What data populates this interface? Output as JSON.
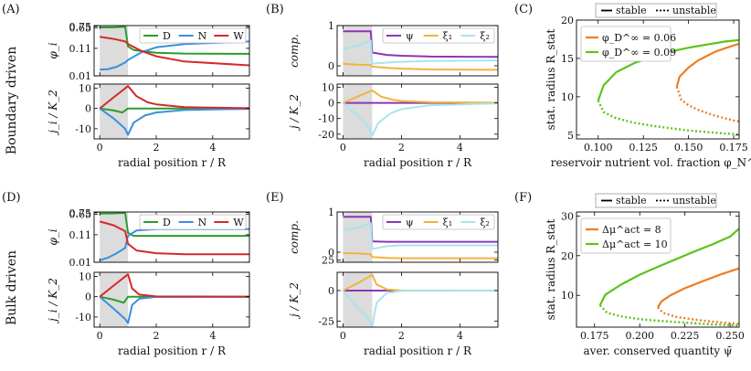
{
  "row_labels": [
    "Boundary driven",
    "Bulk driven"
  ],
  "panel_letters": [
    "(A)",
    "(B)",
    "(C)",
    "(D)",
    "(E)",
    "(F)"
  ],
  "colors": {
    "D": "#2a9d2a",
    "N": "#3b8fe0",
    "W": "#d42a2a",
    "psi": "#8e34b8",
    "xi1": "#f3b33c",
    "xi2": "#a8e4ee",
    "orange": "#ee7d22",
    "green": "#5cc31c",
    "shade": "#dcdcdc"
  },
  "chart_data": [
    {
      "id": "A_top",
      "type": "line",
      "title": "",
      "ylabel": "φ_i",
      "xlim": [
        -0.2,
        5.3
      ],
      "scale": "log",
      "ylim": [
        0.01,
        0.8
      ],
      "yticks": [
        0.01,
        0.11,
        0.65,
        0.75
      ],
      "ytick_labels": [
        "0.01",
        "0.11",
        "0.65",
        "0.75"
      ],
      "legend": [
        "D",
        "N",
        "W"
      ],
      "shaded_x": [
        0,
        1
      ],
      "series": [
        {
          "name": "D",
          "x": [
            0,
            0.5,
            0.9,
            1.0,
            1.2,
            2,
            3,
            5.3
          ],
          "values": [
            0.68,
            0.69,
            0.72,
            0.13,
            0.095,
            0.075,
            0.07,
            0.068
          ]
        },
        {
          "name": "N",
          "x": [
            0,
            0.3,
            0.6,
            0.9,
            1.0,
            1.5,
            2,
            3,
            5.3
          ],
          "values": [
            0.017,
            0.018,
            0.022,
            0.032,
            0.04,
            0.08,
            0.12,
            0.16,
            0.2
          ]
        },
        {
          "name": "W",
          "x": [
            0,
            0.5,
            0.9,
            1.0,
            1.5,
            2,
            3,
            5.3
          ],
          "values": [
            0.3,
            0.25,
            0.2,
            0.16,
            0.085,
            0.055,
            0.035,
            0.025
          ]
        }
      ]
    },
    {
      "id": "A_bottom",
      "type": "line",
      "ylabel": "j_i / K_2",
      "xlabel": "radial position r / R",
      "xlim": [
        -0.2,
        5.3
      ],
      "ylim": [
        -15,
        12
      ],
      "yticks": [
        -10,
        0,
        10
      ],
      "xticks": [
        0,
        2,
        4
      ],
      "shaded_x": [
        0,
        1
      ],
      "series": [
        {
          "name": "D",
          "x": [
            0,
            0.5,
            0.8,
            1.0,
            1.5,
            2,
            3,
            5.3
          ],
          "values": [
            0,
            -1,
            -2,
            0,
            0,
            0,
            0,
            0
          ]
        },
        {
          "name": "N",
          "x": [
            0,
            0.5,
            0.9,
            1.0,
            1.2,
            1.6,
            2,
            3,
            5.3
          ],
          "values": [
            0,
            -5,
            -10,
            -13,
            -7,
            -3.5,
            -2,
            -0.8,
            -0.2
          ]
        },
        {
          "name": "W",
          "x": [
            0,
            0.5,
            1.0,
            1.3,
            1.7,
            2,
            3,
            5.3
          ],
          "values": [
            0,
            5.5,
            11,
            6,
            3,
            2,
            0.6,
            0.1
          ]
        }
      ]
    },
    {
      "id": "B_top",
      "type": "line",
      "ylabel": "comp.",
      "xlim": [
        -0.2,
        5.3
      ],
      "ylim": [
        -0.25,
        1.0
      ],
      "yticks": [
        0,
        1
      ],
      "legend": [
        "ψ",
        "ξ₁",
        "ξ₂"
      ],
      "shaded_x": [
        0,
        1
      ],
      "series": [
        {
          "name": "ψ",
          "x": [
            0,
            0.5,
            0.95,
            1.0,
            1.5,
            2,
            3,
            5.3
          ],
          "values": [
            0.86,
            0.86,
            0.86,
            0.33,
            0.27,
            0.25,
            0.23,
            0.22
          ]
        },
        {
          "name": "ξ₁",
          "x": [
            0,
            0.5,
            0.95,
            1.0,
            1.5,
            2,
            3,
            5.3
          ],
          "values": [
            0.05,
            0.03,
            0.02,
            -0.02,
            -0.05,
            -0.07,
            -0.09,
            -0.1
          ]
        },
        {
          "name": "ξ₂",
          "x": [
            0,
            0.5,
            0.95,
            1.0,
            1.5,
            2,
            3,
            5.3
          ],
          "values": [
            0.42,
            0.5,
            0.62,
            0.05,
            0.08,
            0.1,
            0.12,
            0.13
          ]
        }
      ]
    },
    {
      "id": "B_bottom",
      "type": "line",
      "ylabel": "j / K_2",
      "xlabel": "radial position r / R",
      "xlim": [
        -0.2,
        5.3
      ],
      "ylim": [
        -23,
        12
      ],
      "yticks": [
        -20,
        -10,
        0,
        10
      ],
      "xticks": [
        0,
        2,
        4
      ],
      "shaded_x": [
        0,
        1
      ],
      "series": [
        {
          "name": "ψ",
          "x": [
            0,
            5.3
          ],
          "values": [
            0,
            0
          ]
        },
        {
          "name": "ξ₁",
          "x": [
            0,
            0.5,
            1.0,
            1.3,
            1.7,
            2,
            3,
            5.3
          ],
          "values": [
            0,
            4,
            8,
            4,
            2,
            1.2,
            0.4,
            0.1
          ]
        },
        {
          "name": "ξ₂",
          "x": [
            0,
            0.5,
            0.9,
            1.0,
            1.2,
            1.6,
            2,
            3,
            5.3
          ],
          "values": [
            0,
            -8,
            -16,
            -21,
            -13,
            -7,
            -4,
            -1.5,
            -0.3
          ]
        }
      ]
    },
    {
      "id": "C",
      "type": "line",
      "xlabel": "reservoir nutrient vol. fraction φ_N^∞",
      "ylabel": "stat. radius R_stat",
      "xlim": [
        0.088,
        0.178
      ],
      "ylim": [
        4.5,
        20
      ],
      "xticks": [
        0.1,
        0.125,
        0.15,
        0.175
      ],
      "xtick_labels": [
        "0.100",
        "0.125",
        "0.150",
        "0.175"
      ],
      "yticks": [
        5,
        10,
        15,
        20
      ],
      "legend": [
        "φ_D^∞ = 0.06",
        "φ_D^∞ = 0.09"
      ],
      "style_legend": [
        "stable",
        "unstable"
      ],
      "series": [
        {
          "name": "φ_D^∞ = 0.06",
          "color": "orange",
          "stable": {
            "x": [
              0.1435,
              0.145,
              0.15,
              0.155,
              0.16,
              0.165,
              0.17,
              0.175,
              0.178
            ],
            "values": [
              11.3,
              12.6,
              13.8,
              14.7,
              15.3,
              15.9,
              16.3,
              16.7,
              16.9
            ]
          },
          "unstable": {
            "x": [
              0.1435,
              0.146,
              0.15,
              0.155,
              0.16,
              0.165,
              0.17,
              0.175,
              0.178
            ],
            "values": [
              11.3,
              9.6,
              8.9,
              8.3,
              7.9,
              7.5,
              7.2,
              6.9,
              6.8
            ]
          }
        },
        {
          "name": "φ_D^∞ = 0.09",
          "color": "green",
          "stable": {
            "x": [
              0.1,
              0.103,
              0.11,
              0.12,
              0.13,
              0.14,
              0.15,
              0.16,
              0.17,
              0.178
            ],
            "values": [
              9.5,
              11.5,
              13.2,
              14.4,
              15.2,
              15.9,
              16.4,
              16.8,
              17.2,
              17.4
            ]
          },
          "unstable": {
            "x": [
              0.1,
              0.103,
              0.11,
              0.12,
              0.13,
              0.14,
              0.15,
              0.16,
              0.17,
              0.178
            ],
            "values": [
              9.5,
              8.0,
              7.2,
              6.6,
              6.2,
              5.9,
              5.6,
              5.4,
              5.2,
              5.1
            ]
          }
        }
      ]
    },
    {
      "id": "D_top",
      "type": "line",
      "ylabel": "φ_i",
      "xlim": [
        -0.2,
        5.3
      ],
      "scale": "log",
      "ylim": [
        0.01,
        0.8
      ],
      "yticks": [
        0.01,
        0.11,
        0.65,
        0.75
      ],
      "ytick_labels": [
        "0.01",
        "0.11",
        "0.65",
        "0.75"
      ],
      "legend": [
        "D",
        "N",
        "W"
      ],
      "shaded_x": [
        0,
        1
      ],
      "series": [
        {
          "name": "D",
          "x": [
            0,
            0.5,
            0.9,
            1.0,
            1.2,
            2,
            3,
            5.3
          ],
          "values": [
            0.7,
            0.71,
            0.74,
            0.13,
            0.1,
            0.1,
            0.1,
            0.1
          ]
        },
        {
          "name": "N",
          "x": [
            0,
            0.3,
            0.6,
            0.9,
            1.0,
            1.3,
            2,
            3,
            5.3
          ],
          "values": [
            0.012,
            0.015,
            0.022,
            0.035,
            0.1,
            0.16,
            0.18,
            0.18,
            0.18
          ]
        },
        {
          "name": "W",
          "x": [
            0,
            0.5,
            0.9,
            1.0,
            1.3,
            2,
            3,
            5.3
          ],
          "values": [
            0.35,
            0.25,
            0.15,
            0.05,
            0.028,
            0.022,
            0.02,
            0.02
          ]
        }
      ]
    },
    {
      "id": "D_bottom",
      "type": "line",
      "ylabel": "j_i / K_2",
      "xlabel": "radial position r / R",
      "xlim": [
        -0.2,
        5.3
      ],
      "ylim": [
        -15,
        12
      ],
      "yticks": [
        -10,
        0,
        10
      ],
      "xticks": [
        0,
        2,
        4
      ],
      "shaded_x": [
        0,
        1
      ],
      "series": [
        {
          "name": "D",
          "x": [
            0,
            0.5,
            0.85,
            1.0,
            1.3,
            2,
            5.3
          ],
          "values": [
            0,
            -1.5,
            -3,
            0,
            0,
            0,
            0
          ]
        },
        {
          "name": "N",
          "x": [
            0,
            0.5,
            0.9,
            1.0,
            1.15,
            1.4,
            2,
            5.3
          ],
          "values": [
            0,
            -6,
            -11,
            -13,
            -4,
            -1,
            -0.1,
            0
          ]
        },
        {
          "name": "W",
          "x": [
            0,
            0.5,
            1.0,
            1.15,
            1.4,
            2,
            5.3
          ],
          "values": [
            0,
            5.5,
            11,
            4,
            1,
            0.1,
            0
          ]
        }
      ]
    },
    {
      "id": "E_top",
      "type": "line",
      "ylabel": "comp.",
      "xlim": [
        -0.2,
        5.3
      ],
      "ylim": [
        -0.25,
        1.0
      ],
      "yticks": [
        0,
        1
      ],
      "legend": [
        "ψ",
        "ξ₁",
        "ξ₂"
      ],
      "shaded_x": [
        0,
        1
      ],
      "series": [
        {
          "name": "ψ",
          "x": [
            0,
            0.5,
            0.95,
            1.0,
            1.5,
            2,
            3,
            5.3
          ],
          "values": [
            0.88,
            0.88,
            0.88,
            0.27,
            0.26,
            0.26,
            0.26,
            0.26
          ]
        },
        {
          "name": "ξ₁",
          "x": [
            0,
            0.5,
            0.95,
            1.0,
            1.5,
            2,
            3,
            5.3
          ],
          "values": [
            -0.02,
            -0.03,
            -0.05,
            -0.12,
            -0.14,
            -0.15,
            -0.15,
            -0.15
          ]
        },
        {
          "name": "ξ₂",
          "x": [
            0,
            0.5,
            0.95,
            1.0,
            1.5,
            2,
            3,
            5.3
          ],
          "values": [
            0.55,
            0.6,
            0.72,
            0.08,
            0.15,
            0.17,
            0.17,
            0.17
          ]
        }
      ]
    },
    {
      "id": "E_bottom",
      "type": "line",
      "ylabel": "j / K_2",
      "xlabel": "radial position r / R",
      "xlim": [
        -0.2,
        5.3
      ],
      "ylim": [
        -30,
        15
      ],
      "yticks": [
        -25,
        0,
        25
      ],
      "xticks": [
        0,
        2,
        4
      ],
      "shaded_x": [
        0,
        1
      ],
      "series": [
        {
          "name": "ψ",
          "x": [
            0,
            5.3
          ],
          "values": [
            0,
            0
          ]
        },
        {
          "name": "ξ₁",
          "x": [
            0,
            0.5,
            1.0,
            1.15,
            1.5,
            2,
            5.3
          ],
          "values": [
            0,
            6,
            13,
            5,
            1,
            0.1,
            0
          ]
        },
        {
          "name": "ξ₂",
          "x": [
            0,
            0.5,
            0.9,
            1.0,
            1.15,
            1.5,
            2,
            5.3
          ],
          "values": [
            0,
            -14,
            -24,
            -29,
            -10,
            -2,
            -0.2,
            0
          ]
        }
      ]
    },
    {
      "id": "F",
      "type": "line",
      "xlabel": "aver. conserved quantity ψ̄",
      "ylabel": "stat. radius R_stat",
      "xlim": [
        0.165,
        0.255
      ],
      "ylim": [
        2,
        31
      ],
      "xticks": [
        0.175,
        0.2,
        0.225,
        0.25
      ],
      "xtick_labels": [
        "0.175",
        "0.200",
        "0.225",
        "0.250"
      ],
      "yticks": [
        10,
        20,
        30
      ],
      "legend": [
        "Δμ^act = 8",
        "Δμ^act = 10"
      ],
      "style_legend": [
        "stable",
        "unstable"
      ],
      "series": [
        {
          "name": "Δμ^act = 8",
          "color": "orange",
          "stable": {
            "x": [
              0.21,
              0.212,
              0.217,
              0.225,
              0.235,
              0.245,
              0.255
            ],
            "values": [
              7,
              8.5,
              10.0,
              11.8,
              13.6,
              15.3,
              16.8
            ]
          },
          "unstable": {
            "x": [
              0.21,
              0.213,
              0.22,
              0.23,
              0.24,
              0.25,
              0.255
            ],
            "values": [
              7,
              5.6,
              4.6,
              3.9,
              3.4,
              3.0,
              2.8
            ]
          }
        },
        {
          "name": "Δμ^act = 10",
          "color": "green",
          "stable": {
            "x": [
              0.178,
              0.181,
              0.19,
              0.2,
              0.21,
              0.22,
              0.23,
              0.24,
              0.25,
              0.255
            ],
            "values": [
              7.5,
              10.2,
              12.8,
              15.2,
              17.2,
              19.1,
              21.0,
              22.8,
              24.8,
              26.8
            ]
          },
          "unstable": {
            "x": [
              0.178,
              0.182,
              0.19,
              0.2,
              0.21,
              0.22,
              0.23,
              0.24,
              0.25,
              0.255
            ],
            "values": [
              7.5,
              5.6,
              4.7,
              4.0,
              3.6,
              3.3,
              3.0,
              2.7,
              2.5,
              2.4
            ]
          }
        }
      ]
    }
  ]
}
